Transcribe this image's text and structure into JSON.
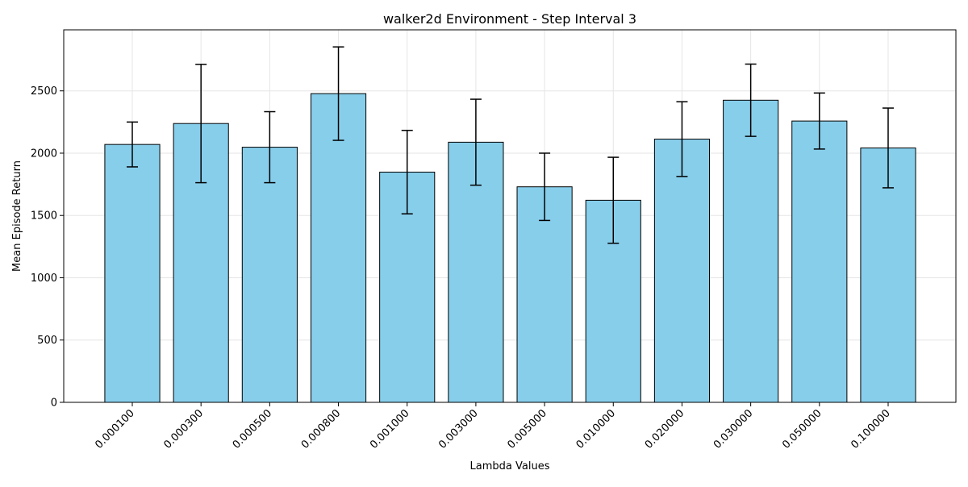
{
  "chart_data": {
    "type": "bar",
    "title": "walker2d Environment - Step Interval 3",
    "xlabel": "Lambda Values",
    "ylabel": "Mean Episode Return",
    "categories": [
      "0.000100",
      "0.000300",
      "0.000500",
      "0.000800",
      "0.001000",
      "0.003000",
      "0.005000",
      "0.010000",
      "0.020000",
      "0.030000",
      "0.050000",
      "0.100000"
    ],
    "values": [
      2070,
      2238,
      2048,
      2478,
      1848,
      2088,
      1730,
      1622,
      2113,
      2425,
      2258,
      2042
    ],
    "errors": [
      180,
      475,
      285,
      375,
      335,
      345,
      270,
      345,
      300,
      290,
      225,
      320
    ],
    "ylim": [
      0,
      2990
    ],
    "yticks": [
      0,
      500,
      1000,
      1500,
      2000,
      2500
    ],
    "grid": true,
    "bar_color": "#87ceeb",
    "edge_color": "#000000",
    "grid_color": "#e5e5e5"
  }
}
